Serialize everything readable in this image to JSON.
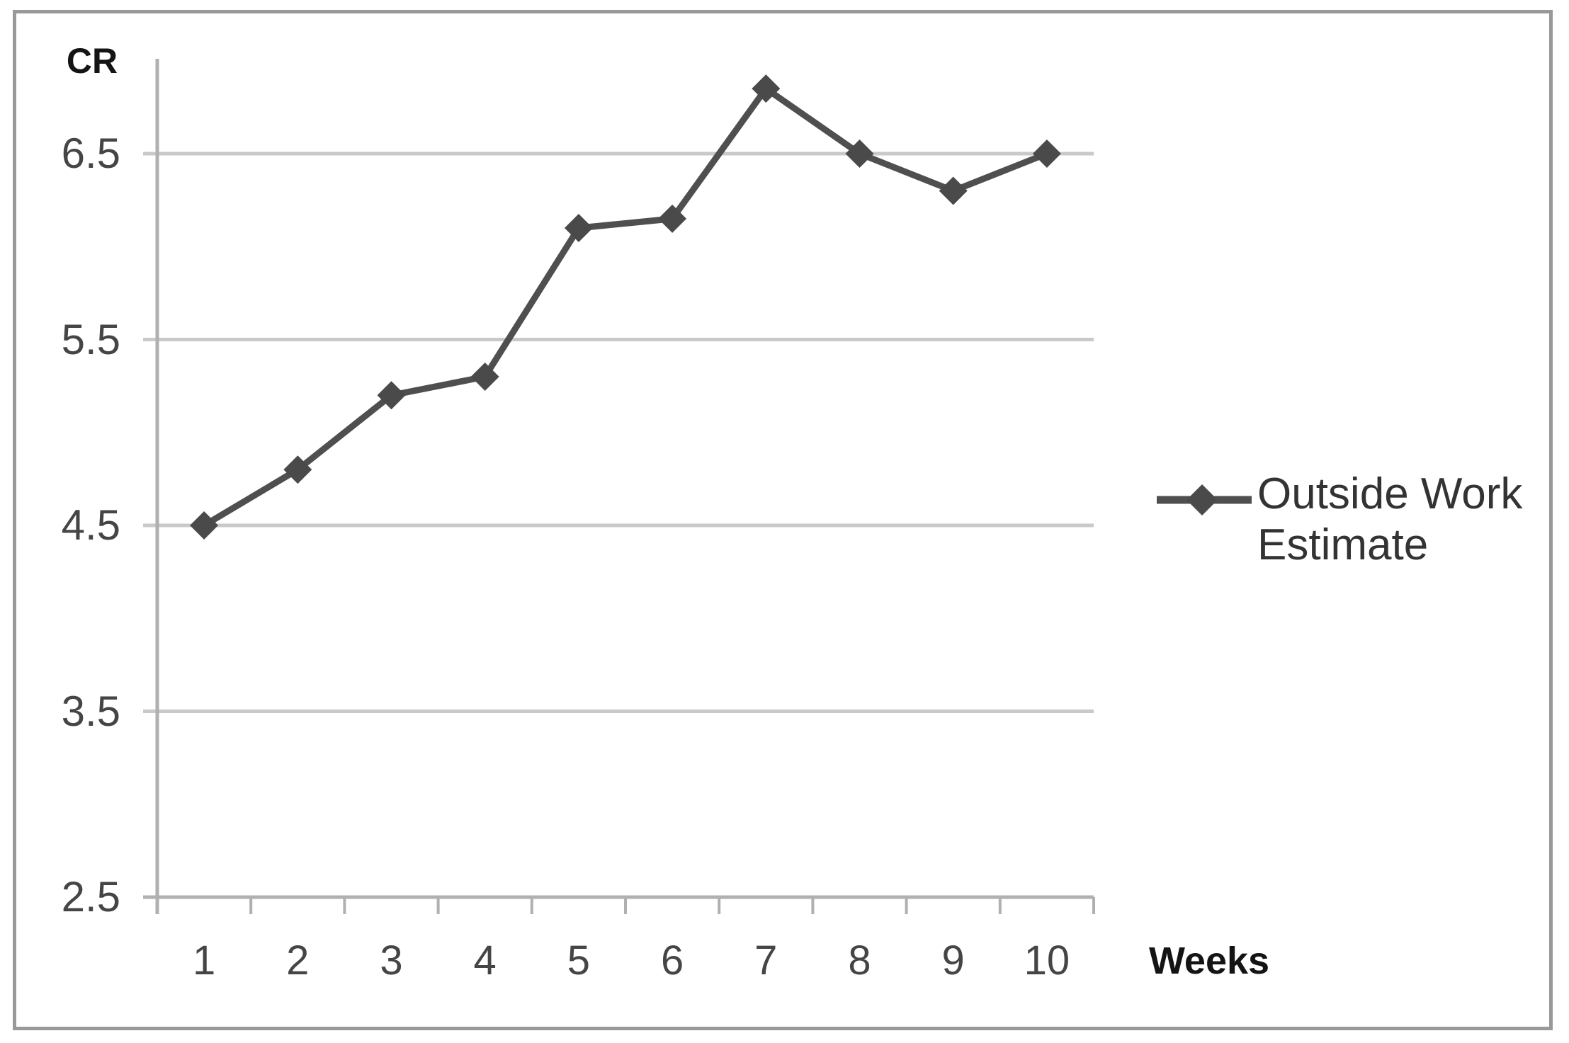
{
  "chart_data": {
    "type": "line",
    "title": "",
    "ylabel": "CR",
    "xlabel": "Weeks",
    "categories": [
      "1",
      "2",
      "3",
      "4",
      "5",
      "6",
      "7",
      "8",
      "9",
      "10"
    ],
    "series": [
      {
        "name": "Outside Work Estimate",
        "values": [
          4.5,
          4.8,
          5.2,
          5.3,
          6.1,
          6.15,
          6.85,
          6.5,
          6.3,
          6.5
        ]
      }
    ],
    "y_ticks": [
      2.5,
      3.5,
      4.5,
      5.5,
      6.5
    ],
    "ylim": [
      2.5,
      7.05
    ],
    "grid": "horizontal-only",
    "legend_position": "right",
    "marker": "diamond",
    "colors": {
      "series_line": "#4f4f4f",
      "marker_fill": "#4a4a4a",
      "gridline": "#c9c9c9",
      "axis_line": "#b0b0b0",
      "tick_label": "#454545",
      "axis_title": "#141414",
      "legend_text": "#333333",
      "frame_border": "#999999",
      "background": "#ffffff"
    }
  }
}
